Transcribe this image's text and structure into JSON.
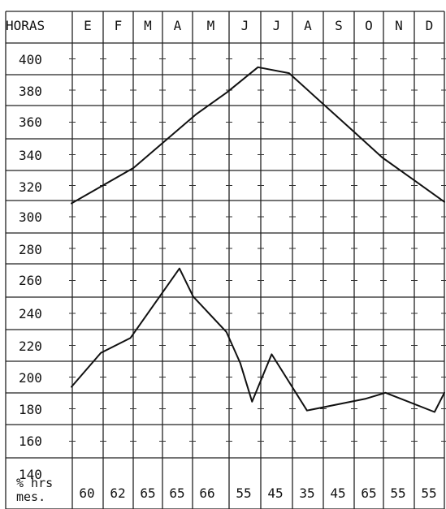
{
  "chart_data": {
    "type": "line",
    "header_label": "HORAS",
    "categories": [
      "E",
      "F",
      "M",
      "A",
      "M",
      "J",
      "J",
      "A",
      "S",
      "O",
      "N",
      "D"
    ],
    "y_tick_labels": [
      "400",
      "380",
      "360",
      "340",
      "320",
      "300",
      "280",
      "260",
      "240",
      "220",
      "200",
      "180",
      "160",
      "140"
    ],
    "ylim": [
      130,
      410
    ],
    "grid": true,
    "footer_label": [
      "% hrs",
      "mes."
    ],
    "footer_values": [
      "60",
      "62",
      "65",
      "65",
      "66",
      "55",
      "45",
      "35",
      "45",
      "65",
      "55",
      "55"
    ],
    "series": [
      {
        "points": [
          {
            "x": 0.0,
            "y": 301
          },
          {
            "x": 1.0,
            "y": 313
          },
          {
            "x": 2.0,
            "y": 325
          },
          {
            "x": 3.0,
            "y": 343
          },
          {
            "x": 4.0,
            "y": 361
          },
          {
            "x": 5.0,
            "y": 376
          },
          {
            "x": 6.0,
            "y": 393
          },
          {
            "x": 7.0,
            "y": 389
          },
          {
            "x": 8.0,
            "y": 370
          },
          {
            "x": 9.0,
            "y": 351
          },
          {
            "x": 10.0,
            "y": 332
          },
          {
            "x": 11.0,
            "y": 317
          },
          {
            "x": 12.0,
            "y": 302
          }
        ]
      },
      {
        "points": [
          {
            "x": 0.0,
            "y": 177
          },
          {
            "x": 1.5,
            "y": 200
          },
          {
            "x": 3.0,
            "y": 210
          },
          {
            "x": 5.5,
            "y": 257
          },
          {
            "x": 6.2,
            "y": 238
          },
          {
            "x": 7.9,
            "y": 214
          },
          {
            "x": 8.6,
            "y": 193
          },
          {
            "x": 9.2,
            "y": 167
          },
          {
            "x": 10.2,
            "y": 199
          },
          {
            "x": 12.0,
            "y": 161
          },
          {
            "x": 15.0,
            "y": 169
          },
          {
            "x": 16.0,
            "y": 173
          },
          {
            "x": 18.5,
            "y": 160
          },
          {
            "x": 19.0,
            "y": 173
          }
        ]
      }
    ]
  }
}
